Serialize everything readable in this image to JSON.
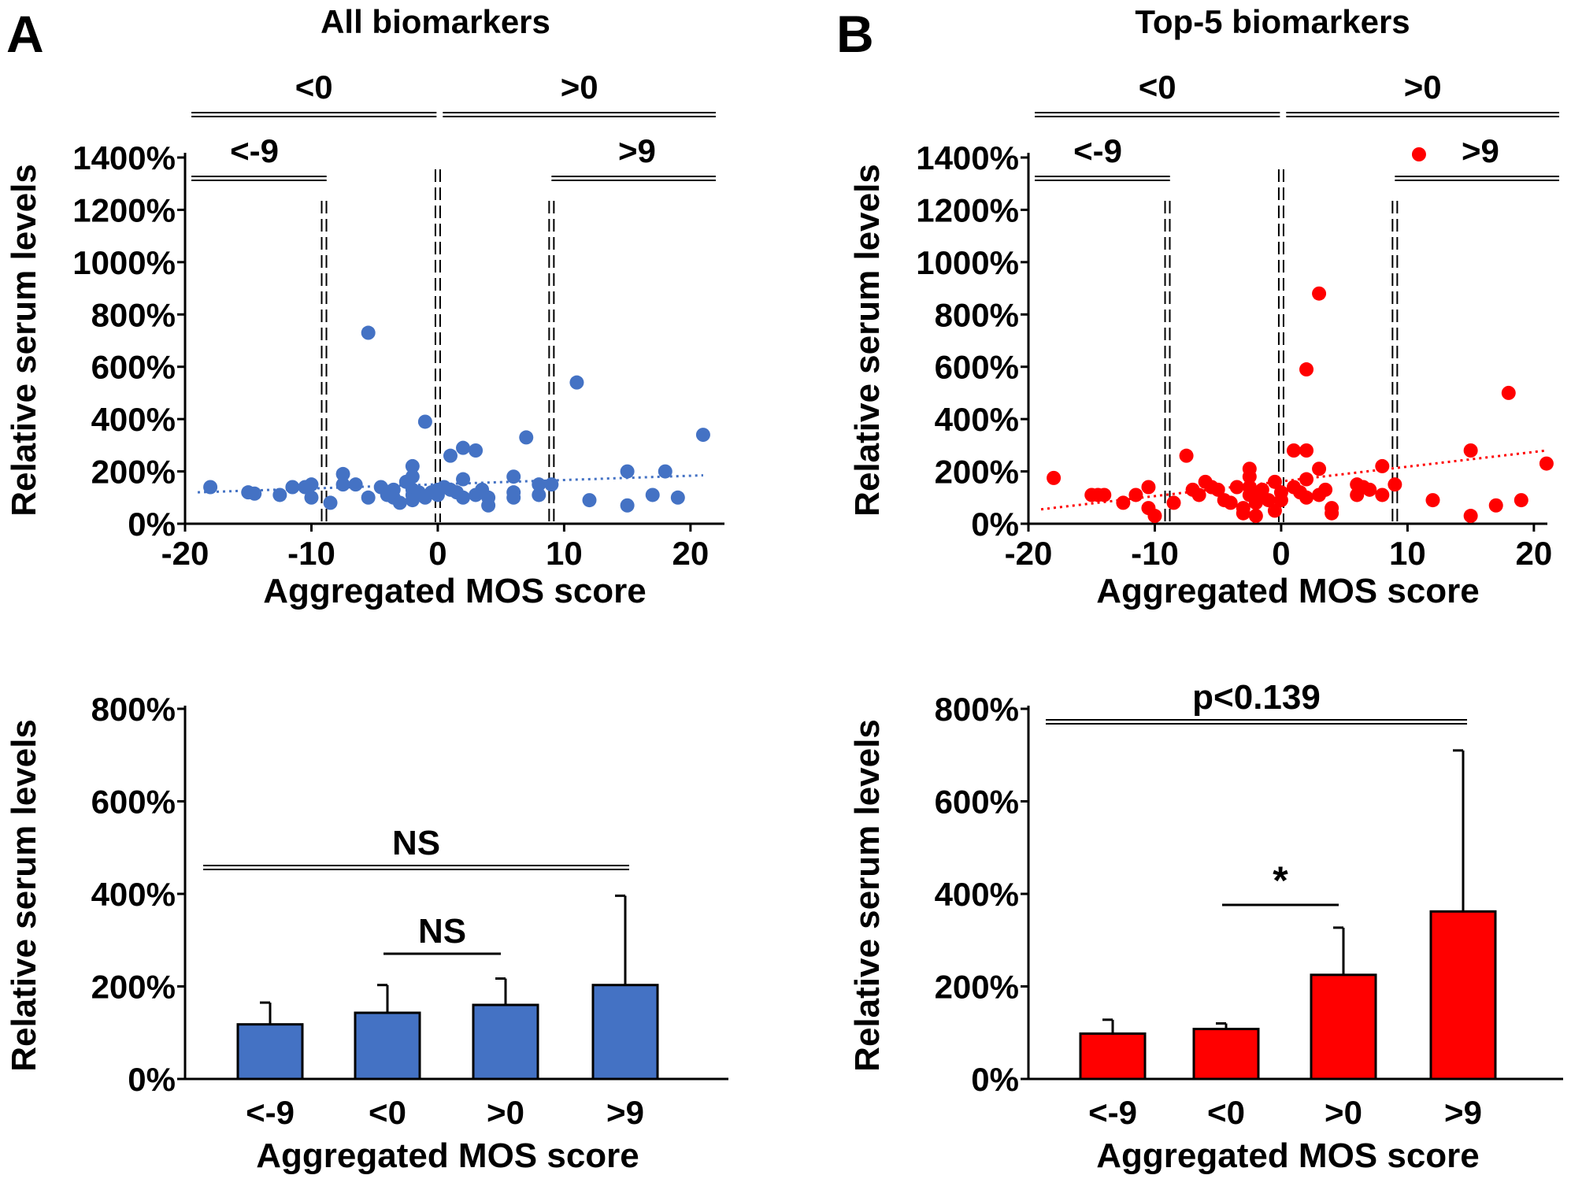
{
  "panel_labels": [
    "A",
    "B"
  ],
  "colors": {
    "panel_a": "#4472C4",
    "panel_b": "#FF0000",
    "axis": "#000000"
  },
  "chart_data": [
    {
      "id": "A-scatter",
      "type": "scatter",
      "title": "All biomarkers",
      "xlabel": "Aggregated MOS score",
      "ylabel": "Relative serum levels",
      "xlim": [
        -20,
        23
      ],
      "ylim": [
        0,
        1400
      ],
      "xticks": [
        -20,
        -10,
        0,
        10,
        20
      ],
      "xtick_labels": [
        "-20",
        "-10",
        "0",
        "10",
        "20"
      ],
      "yticks": [
        0,
        200,
        400,
        600,
        800,
        1000,
        1200,
        1400
      ],
      "ytick_labels": [
        "0%",
        "200%",
        "400%",
        "600%",
        "800%",
        "1000%",
        "1200%",
        "1400%"
      ],
      "group_brackets": [
        {
          "label": "<0",
          "from": -19.5,
          "to": -0.1,
          "level": "upper"
        },
        {
          "label": ">0",
          "from": 0.4,
          "to": 22,
          "level": "upper"
        },
        {
          "label": "<-9",
          "from": -19.5,
          "to": -8.8,
          "level": "lower"
        },
        {
          "label": ">9",
          "from": 9,
          "to": 22,
          "level": "lower"
        }
      ],
      "cutoffs": [
        -9,
        0,
        9
      ],
      "trendline": {
        "x": [
          -19,
          21
        ],
        "y": [
          120,
          185
        ]
      },
      "points": [
        [
          -18,
          140
        ],
        [
          -15,
          120
        ],
        [
          -14.5,
          115
        ],
        [
          -12.5,
          110
        ],
        [
          -11.5,
          140
        ],
        [
          -10.5,
          140
        ],
        [
          -10,
          150
        ],
        [
          -10,
          100
        ],
        [
          -8.5,
          80
        ],
        [
          -7.5,
          190
        ],
        [
          -7.5,
          150
        ],
        [
          -6.5,
          150
        ],
        [
          -5.5,
          730
        ],
        [
          -5.5,
          100
        ],
        [
          -4.5,
          140
        ],
        [
          -4,
          110
        ],
        [
          -3.5,
          130
        ],
        [
          -3.5,
          100
        ],
        [
          -3,
          80
        ],
        [
          -2.5,
          160
        ],
        [
          -2,
          220
        ],
        [
          -2,
          180
        ],
        [
          -2,
          130
        ],
        [
          -2,
          110
        ],
        [
          -2,
          90
        ],
        [
          -1.5,
          120
        ],
        [
          -1,
          390
        ],
        [
          -1,
          100
        ],
        [
          -0.5,
          120
        ],
        [
          0,
          130
        ],
        [
          0,
          110
        ],
        [
          0.5,
          140
        ],
        [
          1,
          260
        ],
        [
          1,
          130
        ],
        [
          1.5,
          120
        ],
        [
          2,
          290
        ],
        [
          2,
          170
        ],
        [
          2,
          100
        ],
        [
          3,
          280
        ],
        [
          3,
          110
        ],
        [
          3.5,
          130
        ],
        [
          4,
          100
        ],
        [
          4,
          70
        ],
        [
          6,
          180
        ],
        [
          6,
          120
        ],
        [
          6,
          100
        ],
        [
          7,
          330
        ],
        [
          8,
          150
        ],
        [
          8,
          110
        ],
        [
          9,
          150
        ],
        [
          11,
          540
        ],
        [
          12,
          90
        ],
        [
          15,
          200
        ],
        [
          15,
          70
        ],
        [
          17,
          110
        ],
        [
          18,
          200
        ],
        [
          19,
          100
        ],
        [
          21,
          340
        ]
      ]
    },
    {
      "id": "A-bar",
      "type": "bar",
      "xlabel": "Aggregated MOS score",
      "ylabel": "Relative serum levels",
      "categories": [
        "<-9",
        "<0",
        ">0",
        ">9"
      ],
      "values": [
        118,
        143,
        160,
        203
      ],
      "errors": [
        47,
        60,
        57,
        193
      ],
      "ylim": [
        0,
        800
      ],
      "yticks": [
        0,
        200,
        400,
        600,
        800
      ],
      "ytick_labels": [
        "0%",
        "200%",
        "400%",
        "600%",
        "800%"
      ],
      "significance": [
        {
          "label": "NS",
          "from": 0,
          "to": 3,
          "style": "double"
        },
        {
          "label": "NS",
          "from": 1,
          "to": 2,
          "style": "single"
        }
      ]
    },
    {
      "id": "B-scatter",
      "type": "scatter",
      "title": "Top-5 biomarkers",
      "legend": ">9",
      "xlabel": "Aggregated MOS score",
      "ylabel": "Relative serum levels",
      "xlim": [
        -20,
        23
      ],
      "ylim": [
        0,
        1400
      ],
      "xticks": [
        -20,
        -10,
        0,
        10,
        20
      ],
      "xtick_labels": [
        "-20",
        "-10",
        "0",
        "10",
        "20"
      ],
      "yticks": [
        0,
        200,
        400,
        600,
        800,
        1000,
        1200,
        1400
      ],
      "ytick_labels": [
        "0%",
        "200%",
        "400%",
        "600%",
        "800%",
        "1000%",
        "1200%",
        "1400%"
      ],
      "group_brackets": [
        {
          "label": "<0",
          "from": -19.5,
          "to": -0.1,
          "level": "upper"
        },
        {
          "label": ">0",
          "from": 0.4,
          "to": 22,
          "level": "upper"
        },
        {
          "label": "<-9",
          "from": -19.5,
          "to": -8.8,
          "level": "lower"
        },
        {
          "label": ">9",
          "from": 9,
          "to": 22,
          "level": "lower"
        }
      ],
      "cutoffs": [
        -9,
        0,
        9
      ],
      "trendline": {
        "x": [
          -19,
          21
        ],
        "y": [
          55,
          280
        ]
      },
      "points": [
        [
          -18,
          175
        ],
        [
          -15,
          110
        ],
        [
          -14.5,
          110
        ],
        [
          -14,
          110
        ],
        [
          -12.5,
          80
        ],
        [
          -11.5,
          110
        ],
        [
          -10.5,
          140
        ],
        [
          -10.5,
          60
        ],
        [
          -10,
          30
        ],
        [
          -8.5,
          80
        ],
        [
          -7.5,
          260
        ],
        [
          -7,
          130
        ],
        [
          -6.5,
          110
        ],
        [
          -6,
          160
        ],
        [
          -5.5,
          140
        ],
        [
          -5,
          130
        ],
        [
          -4.5,
          90
        ],
        [
          -4,
          80
        ],
        [
          -3.5,
          140
        ],
        [
          -3,
          60
        ],
        [
          -3,
          40
        ],
        [
          -2.5,
          210
        ],
        [
          -2.5,
          180
        ],
        [
          -2.5,
          140
        ],
        [
          -2.5,
          110
        ],
        [
          -2,
          100
        ],
        [
          -2,
          80
        ],
        [
          -2,
          30
        ],
        [
          -1.5,
          130
        ],
        [
          -1,
          90
        ],
        [
          -0.5,
          160
        ],
        [
          -0.5,
          50
        ],
        [
          0,
          120
        ],
        [
          0,
          90
        ],
        [
          1,
          280
        ],
        [
          1,
          140
        ],
        [
          1.5,
          120
        ],
        [
          2,
          590
        ],
        [
          2,
          280
        ],
        [
          2,
          170
        ],
        [
          2,
          100
        ],
        [
          3,
          880
        ],
        [
          3,
          210
        ],
        [
          3,
          110
        ],
        [
          3.5,
          130
        ],
        [
          4,
          60
        ],
        [
          4,
          40
        ],
        [
          6,
          150
        ],
        [
          6,
          110
        ],
        [
          6.5,
          140
        ],
        [
          7,
          130
        ],
        [
          8,
          220
        ],
        [
          8,
          110
        ],
        [
          9,
          150
        ],
        [
          12,
          90
        ],
        [
          15,
          280
        ],
        [
          15,
          30
        ],
        [
          17,
          70
        ],
        [
          18,
          500
        ],
        [
          19,
          90
        ],
        [
          21,
          230
        ]
      ]
    },
    {
      "id": "B-bar",
      "type": "bar",
      "xlabel": "Aggregated MOS score",
      "ylabel": "Relative serum levels",
      "categories": [
        "<-9",
        "<0",
        ">0",
        ">9"
      ],
      "values": [
        98,
        108,
        225,
        362
      ],
      "errors": [
        30,
        12,
        102,
        348
      ],
      "ylim": [
        0,
        800
      ],
      "yticks": [
        0,
        200,
        400,
        600,
        800
      ],
      "ytick_labels": [
        "0%",
        "200%",
        "400%",
        "600%",
        "800%"
      ],
      "significance": [
        {
          "label": "p<0.139",
          "from": 0,
          "to": 3,
          "style": "double"
        },
        {
          "label": "*",
          "from": 1,
          "to": 2,
          "style": "single"
        }
      ]
    }
  ]
}
